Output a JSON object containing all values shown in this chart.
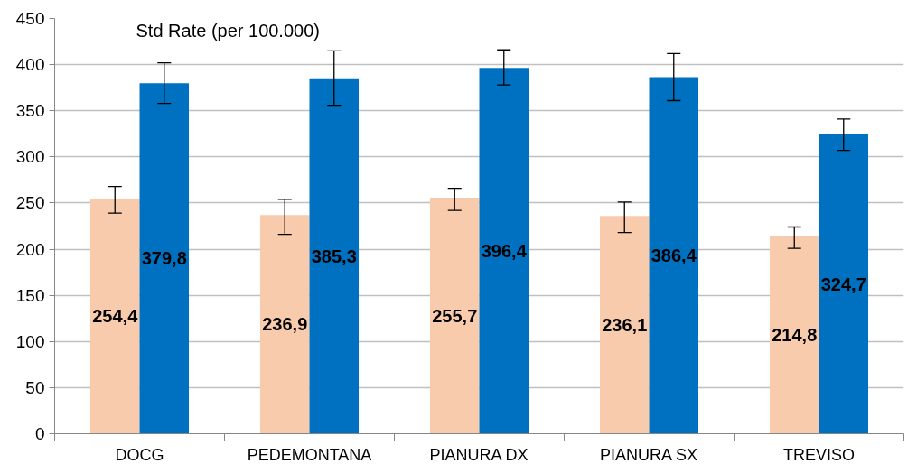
{
  "chart_data": {
    "type": "bar",
    "ylabel": "Std Rate (per 100.000)",
    "categories": [
      "DOCG",
      "PEDEMONTANA",
      "PIANURA DX",
      "PIANURA SX",
      "TREVISO"
    ],
    "series": [
      {
        "color": "#f8cbad",
        "values": [
          254.4,
          236.9,
          255.7,
          236.1,
          214.8
        ],
        "value_labels": [
          "254,4",
          "236,9",
          "255,7",
          "236,1",
          "214,8"
        ],
        "errors": [
          [
            239,
            268
          ],
          [
            216,
            254
          ],
          [
            242,
            266
          ],
          [
            218,
            251
          ],
          [
            201,
            224
          ]
        ]
      },
      {
        "color": "#0070c0",
        "values": [
          379.8,
          385.3,
          396.4,
          386.4,
          324.7
        ],
        "value_labels": [
          "379,8",
          "385,3",
          "396,4",
          "386,4",
          "324,7"
        ],
        "errors": [
          [
            358,
            402
          ],
          [
            356,
            415
          ],
          [
            378,
            416
          ],
          [
            361,
            412
          ],
          [
            307,
            341
          ]
        ]
      }
    ],
    "ylim": [
      0,
      450
    ],
    "yticks": [
      0,
      50,
      100,
      150,
      200,
      250,
      300,
      350,
      400,
      450
    ],
    "grid": "y"
  }
}
